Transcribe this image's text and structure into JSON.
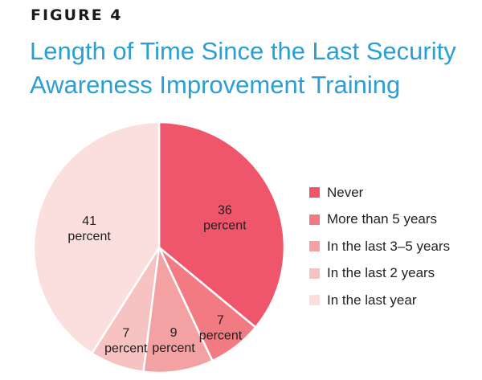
{
  "figure_label": "FIGURE 4",
  "title_line1": "Length of Time Since the Last Security",
  "title_line2": "Awareness Improvement Training",
  "chart_data": {
    "type": "pie",
    "slices": [
      {
        "name": "Never",
        "value": 36,
        "label": "36",
        "unit": "percent",
        "color": "#f0566b"
      },
      {
        "name": "More than 5 years",
        "value": 7,
        "label": "7",
        "unit": "percent",
        "color": "#f27a83"
      },
      {
        "name": "In the last 3–5 years",
        "value": 9,
        "label": "9",
        "unit": "percent",
        "color": "#f4a1a3"
      },
      {
        "name": "In the last 2 years",
        "value": 7,
        "label": "7",
        "unit": "percent",
        "color": "#f7c2c2"
      },
      {
        "name": "In the last year",
        "value": 41,
        "label": "41",
        "unit": "percent",
        "color": "#fbdfdd"
      }
    ],
    "legend_position": "right",
    "start": "top, clockwise"
  }
}
